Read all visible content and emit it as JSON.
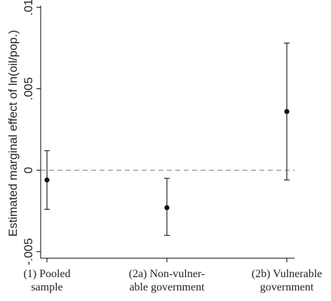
{
  "chart_data": {
    "type": "scatter",
    "title": "",
    "ylabel": "Estimated marginal effect of ln(oil/pop.)",
    "xlabel": "",
    "ylim": [
      -0.0054,
      0.0101
    ],
    "yticks": [
      {
        "value": -0.005,
        "label": "-.005"
      },
      {
        "value": 0,
        "label": "0"
      },
      {
        "value": 0.005,
        "label": ".005"
      },
      {
        "value": 0.01,
        "label": ".01"
      }
    ],
    "grid": false,
    "reference_line": {
      "value": 0,
      "style": "dashed"
    },
    "categories": [
      {
        "lines": [
          "(1) Pooled",
          "sample"
        ]
      },
      {
        "lines": [
          "(2a) Non-vulner-",
          "able government"
        ]
      },
      {
        "lines": [
          "(2b) Vulnerable",
          "government"
        ]
      }
    ],
    "points": [
      {
        "estimate": -0.0006,
        "ci_low": -0.0024,
        "ci_high": 0.0012
      },
      {
        "estimate": -0.0023,
        "ci_low": -0.004,
        "ci_high": -0.0005
      },
      {
        "estimate": 0.0036,
        "ci_low": -0.0006,
        "ci_high": 0.0078
      }
    ]
  }
}
